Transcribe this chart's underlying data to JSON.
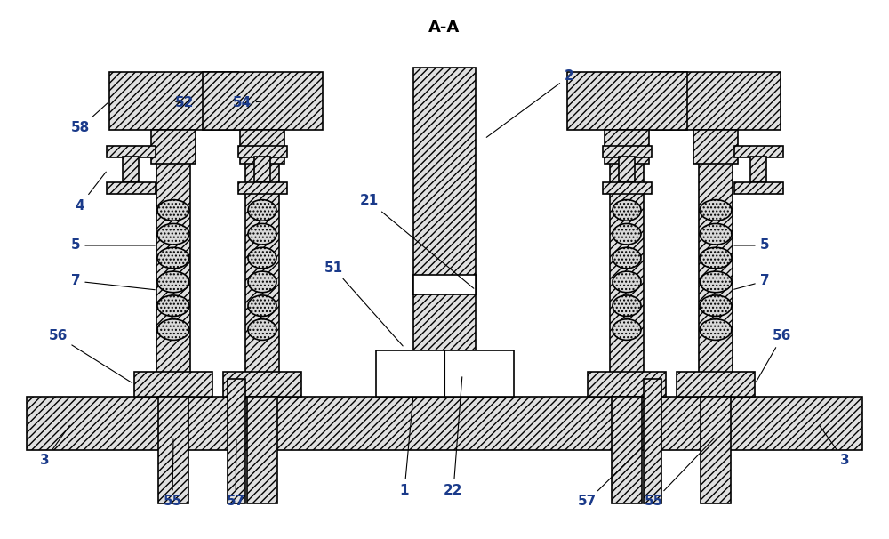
{
  "bg_color": "#ffffff",
  "line_color": "#000000",
  "hatch_color": "#555555",
  "figsize": [
    10.0,
    6.06
  ],
  "dpi": 100,
  "label_color": "#1a3a8a",
  "label_fs": 11
}
